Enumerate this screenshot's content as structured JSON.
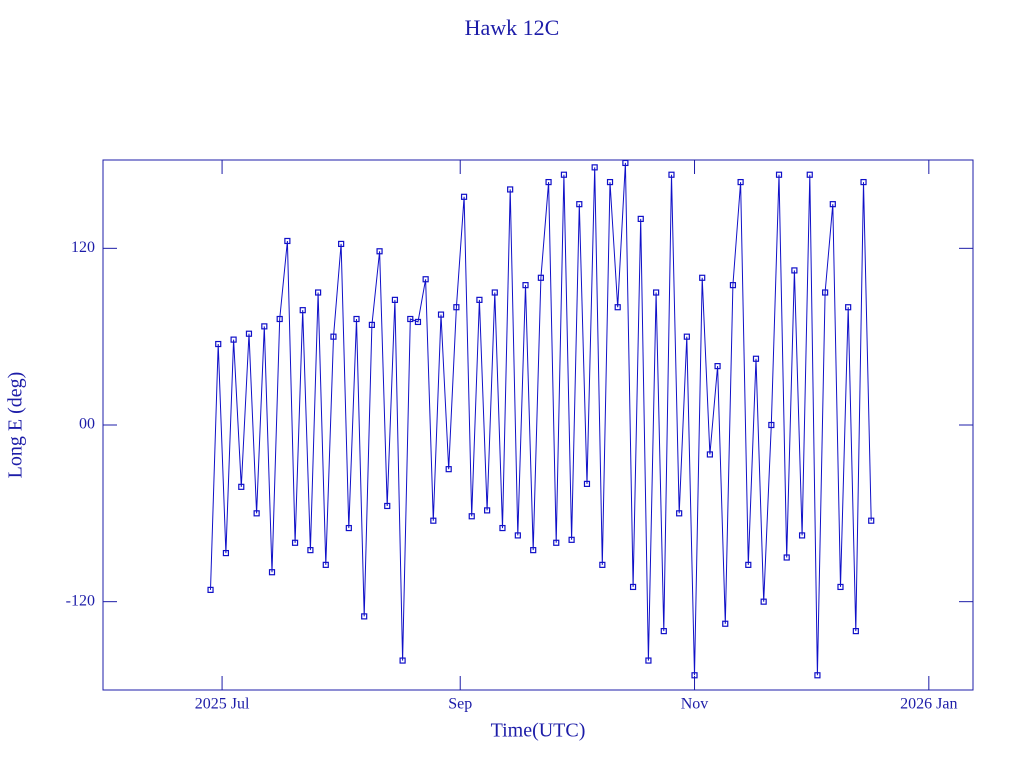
{
  "chart_data": {
    "type": "line",
    "title": "Hawk 12C",
    "x_label": "Time(UTC)",
    "y_label": "Long E (deg)",
    "xlim": [
      151,
      377.5
    ],
    "xticks": [
      {
        "value": 182,
        "label": "2025 Jul"
      },
      {
        "value": 244,
        "label": "Sep"
      },
      {
        "value": 305,
        "label": "Nov"
      },
      {
        "value": 366,
        "label": "2026 Jan"
      }
    ],
    "ylim": [
      -180,
      180
    ],
    "yticks": [
      {
        "value": -120,
        "label": "-120"
      },
      {
        "value": 0,
        "label": "00"
      },
      120
    ],
    "grid": false,
    "series": [
      {
        "name": "Hawk 12C",
        "color": "#1010c8",
        "x": [
          179,
          181,
          183,
          185,
          187,
          189,
          191,
          193,
          195,
          197,
          199,
          201,
          203,
          205,
          207,
          209,
          211,
          213,
          215,
          217,
          219,
          221,
          223,
          225,
          227,
          229,
          231,
          233,
          235,
          237,
          239,
          241,
          243,
          245,
          247,
          249,
          251,
          253,
          255,
          257,
          259,
          261,
          263,
          265,
          267,
          269,
          271,
          273,
          275,
          277,
          279,
          281,
          283,
          285,
          287,
          289,
          291,
          293,
          295,
          297,
          299,
          301,
          303,
          305,
          307,
          309,
          311,
          313,
          315,
          317,
          319,
          321,
          323,
          325,
          327,
          329,
          331,
          333,
          335,
          337,
          339,
          341,
          343,
          345,
          347,
          349,
          351
        ],
        "values": [
          -112,
          55,
          -87,
          58,
          -42,
          62,
          -60,
          67,
          -100,
          72,
          125,
          -80,
          78,
          -85,
          90,
          -95,
          60,
          123,
          -70,
          72,
          -130,
          68,
          118,
          -55,
          85,
          -160,
          72,
          70,
          99,
          -65,
          75,
          -30,
          80,
          155,
          -62,
          85,
          -58,
          90,
          -70,
          160,
          -75,
          95,
          -85,
          100,
          165,
          -80,
          170,
          -78,
          150,
          -40,
          175,
          -95,
          165,
          80,
          178,
          -110,
          140,
          -160,
          90,
          -140,
          170,
          -60,
          60,
          -170,
          100,
          -20,
          40,
          -135,
          95,
          165,
          -95,
          45,
          -120,
          0,
          170,
          -90,
          105,
          -75,
          170,
          -170,
          90,
          150,
          -110,
          80,
          -140,
          165,
          -65
        ]
      }
    ]
  }
}
